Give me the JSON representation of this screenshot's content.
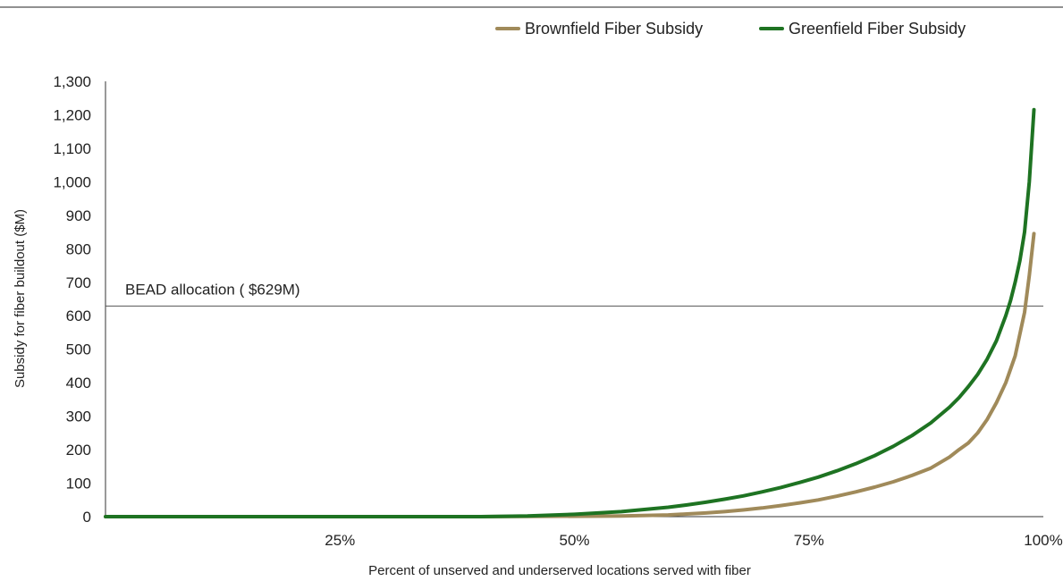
{
  "chart_data": {
    "type": "line",
    "xlabel": "Percent of unserved and underserved locations served with fiber",
    "ylabel": "Subsidy for fiber buildout ($M)",
    "xlim": [
      0,
      100
    ],
    "ylim": [
      0,
      1300
    ],
    "x_ticks": [
      {
        "value": 25,
        "label": "25%"
      },
      {
        "value": 50,
        "label": "50%"
      },
      {
        "value": 75,
        "label": "75%"
      },
      {
        "value": 100,
        "label": "100%"
      }
    ],
    "y_ticks": [
      {
        "value": 0,
        "label": "0"
      },
      {
        "value": 100,
        "label": "100"
      },
      {
        "value": 200,
        "label": "200"
      },
      {
        "value": 300,
        "label": "300"
      },
      {
        "value": 400,
        "label": "400"
      },
      {
        "value": 500,
        "label": "500"
      },
      {
        "value": 600,
        "label": "600"
      },
      {
        "value": 700,
        "label": "700"
      },
      {
        "value": 800,
        "label": "800"
      },
      {
        "value": 900,
        "label": "900"
      },
      {
        "value": 1000,
        "label": "1,000"
      },
      {
        "value": 1100,
        "label": "1,100"
      },
      {
        "value": 1200,
        "label": "1,200"
      },
      {
        "value": 1300,
        "label": "1,300"
      }
    ],
    "grid": false,
    "legend_position": "top-right",
    "series": [
      {
        "name": "Brownfield Fiber Subsidy",
        "color": "#a08a5a",
        "x": [
          0,
          40,
          55,
          60,
          62,
          64,
          66,
          68,
          70,
          72,
          74,
          76,
          78,
          80,
          82,
          84,
          86,
          88,
          90,
          91,
          92,
          93,
          94,
          95,
          96,
          97,
          98,
          98.5,
          99
        ],
        "y": [
          0,
          0,
          2,
          5,
          8,
          11,
          15,
          20,
          26,
          33,
          41,
          50,
          61,
          74,
          88,
          104,
          123,
          145,
          178,
          200,
          220,
          250,
          290,
          340,
          400,
          480,
          610,
          720,
          845
        ]
      },
      {
        "name": "Greenfield Fiber Subsidy",
        "color": "#1e7322",
        "x": [
          0,
          40,
          45,
          50,
          55,
          60,
          62,
          64,
          66,
          68,
          70,
          72,
          74,
          76,
          78,
          80,
          82,
          84,
          86,
          88,
          90,
          91,
          92,
          93,
          94,
          95,
          96,
          96.5,
          97,
          97.5,
          98,
          98.5,
          99
        ],
        "y": [
          0,
          0,
          2,
          7,
          15,
          28,
          35,
          43,
          52,
          62,
          74,
          87,
          102,
          118,
          137,
          158,
          182,
          210,
          242,
          280,
          327,
          355,
          388,
          425,
          470,
          525,
          600,
          645,
          700,
          765,
          850,
          1000,
          1215
        ]
      }
    ],
    "annotations": [
      {
        "type": "hline",
        "y": 629,
        "label": "BEAD allocation ( $629M)",
        "color": "#555555"
      }
    ]
  }
}
